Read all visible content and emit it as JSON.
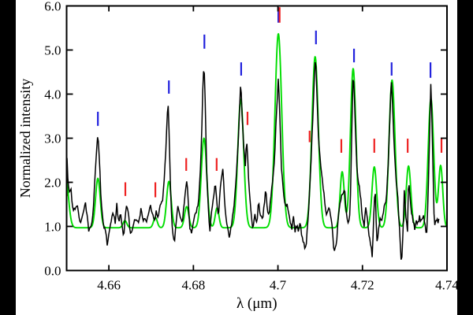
{
  "figure": {
    "kind": "spectrum-plot",
    "background": "#ffffff",
    "letterbox_color": "#000000"
  },
  "axes": {
    "xlabel": "λ (μm)",
    "ylabel": "Normalized intensity",
    "xticks": [
      {
        "v": 4.66,
        "label": "4.66"
      },
      {
        "v": 4.68,
        "label": "4.68"
      },
      {
        "v": 4.7,
        "label": "4.7"
      },
      {
        "v": 4.72,
        "label": "4.72"
      },
      {
        "v": 4.74,
        "label": "4.74"
      }
    ],
    "yticks": [
      {
        "v": 0,
        "label": "0.0"
      },
      {
        "v": 1,
        "label": "1.0"
      },
      {
        "v": 2,
        "label": "2.0"
      },
      {
        "v": 3,
        "label": "3.0"
      },
      {
        "v": 4,
        "label": "4.0"
      },
      {
        "v": 5,
        "label": "5.0"
      },
      {
        "v": 6,
        "label": "6.0"
      }
    ]
  },
  "chart_data": {
    "type": "line",
    "title": "",
    "xlabel": "λ (μm)",
    "ylabel": "Normalized intensity",
    "xlim": [
      4.65,
      4.74
    ],
    "ylim": [
      0.0,
      6.0
    ],
    "grid": false,
    "legend": "none",
    "noise_amplitude": 0.055,
    "series": [
      {
        "name": "observed-spectrum",
        "color": "#000000",
        "style": "noisy-line",
        "points": [
          [
            4.6501,
            2.55
          ],
          [
            4.6503,
            2.1
          ],
          [
            4.6507,
            1.75
          ],
          [
            4.651,
            1.92
          ],
          [
            4.6514,
            1.45
          ],
          [
            4.652,
            1.33
          ],
          [
            4.6525,
            1.5
          ],
          [
            4.6529,
            1.2
          ],
          [
            4.6535,
            1.1
          ],
          [
            4.654,
            1.3
          ],
          [
            4.6544,
            1.6
          ],
          [
            4.6548,
            1.25
          ],
          [
            4.6553,
            0.87
          ],
          [
            4.6559,
            1.1
          ],
          [
            4.6563,
            1.3
          ],
          [
            4.6566,
            1.9
          ],
          [
            4.657,
            2.6
          ],
          [
            4.6574,
            3.1
          ],
          [
            4.6578,
            2.4
          ],
          [
            4.6581,
            1.7
          ],
          [
            4.6587,
            1.05
          ],
          [
            4.6593,
            0.85
          ],
          [
            4.6596,
            0.58
          ],
          [
            4.6602,
            1.0
          ],
          [
            4.6606,
            1.15
          ],
          [
            4.6611,
            1.3
          ],
          [
            4.6615,
            1.05
          ],
          [
            4.6619,
            1.58
          ],
          [
            4.6622,
            1.1
          ],
          [
            4.6628,
            1.25
          ],
          [
            4.6632,
            0.95
          ],
          [
            4.6635,
            0.78
          ],
          [
            4.6641,
            1.52
          ],
          [
            4.6647,
            1.25
          ],
          [
            4.665,
            0.9
          ],
          [
            4.6654,
            0.82
          ],
          [
            4.666,
            1.1
          ],
          [
            4.6665,
            1.2
          ],
          [
            4.6671,
            1.05
          ],
          [
            4.6676,
            1.4
          ],
          [
            4.6682,
            1.15
          ],
          [
            4.6688,
            1.1
          ],
          [
            4.6693,
            1.28
          ],
          [
            4.6699,
            1.45
          ],
          [
            4.6703,
            1.3
          ],
          [
            4.6708,
            1.15
          ],
          [
            4.6712,
            1.35
          ],
          [
            4.6716,
            1.2
          ],
          [
            4.6721,
            1.45
          ],
          [
            4.6727,
            1.6
          ],
          [
            4.6732,
            2.2
          ],
          [
            4.6736,
            3.0
          ],
          [
            4.674,
            3.85
          ],
          [
            4.6744,
            2.6
          ],
          [
            4.6747,
            1.5
          ],
          [
            4.6751,
            0.8
          ],
          [
            4.6755,
            0.58
          ],
          [
            4.676,
            1.2
          ],
          [
            4.6764,
            1.5
          ],
          [
            4.6768,
            1.25
          ],
          [
            4.6773,
            1.05
          ],
          [
            4.6779,
            1.6
          ],
          [
            4.6785,
            2.1
          ],
          [
            4.6788,
            1.5
          ],
          [
            4.6792,
            0.95
          ],
          [
            4.6796,
            0.8
          ],
          [
            4.6801,
            1.15
          ],
          [
            4.6807,
            1.3
          ],
          [
            4.6813,
            1.65
          ],
          [
            4.6818,
            2.6
          ],
          [
            4.6822,
            4.0
          ],
          [
            4.6825,
            4.78
          ],
          [
            4.6828,
            3.8
          ],
          [
            4.6831,
            2.4
          ],
          [
            4.6835,
            1.45
          ],
          [
            4.6839,
            0.9
          ],
          [
            4.6842,
            1.3
          ],
          [
            4.6846,
            1.55
          ],
          [
            4.6852,
            1.95
          ],
          [
            4.6856,
            1.5
          ],
          [
            4.6859,
            1.2
          ],
          [
            4.6865,
            2.0
          ],
          [
            4.687,
            2.3
          ],
          [
            4.6874,
            1.55
          ],
          [
            4.6878,
            1.15
          ],
          [
            4.6882,
            0.95
          ],
          [
            4.6885,
            0.7
          ],
          [
            4.6891,
            1.1
          ],
          [
            4.6897,
            1.55
          ],
          [
            4.6902,
            2.2
          ],
          [
            4.6908,
            3.3
          ],
          [
            4.6912,
            4.28
          ],
          [
            4.6915,
            3.6
          ],
          [
            4.6919,
            2.8
          ],
          [
            4.6923,
            2.4
          ],
          [
            4.6926,
            3.05
          ],
          [
            4.693,
            2.2
          ],
          [
            4.6934,
            1.55
          ],
          [
            4.6938,
            1.15
          ],
          [
            4.6941,
            0.95
          ],
          [
            4.6945,
            1.25
          ],
          [
            4.6951,
            1.1
          ],
          [
            4.6954,
            1.55
          ],
          [
            4.6958,
            1.3
          ],
          [
            4.6964,
            1.1
          ],
          [
            4.6967,
            1.45
          ],
          [
            4.6971,
            1.84
          ],
          [
            4.6975,
            1.35
          ],
          [
            4.6979,
            1.2
          ],
          [
            4.6982,
            1.55
          ],
          [
            4.6986,
            1.9
          ],
          [
            4.6992,
            2.5
          ],
          [
            4.6995,
            3.3
          ],
          [
            4.7001,
            4.37
          ],
          [
            4.7005,
            3.4
          ],
          [
            4.7008,
            2.4
          ],
          [
            4.7012,
            1.85
          ],
          [
            4.7016,
            1.55
          ],
          [
            4.702,
            1.5
          ],
          [
            4.7023,
            1.45
          ],
          [
            4.7029,
            1.1
          ],
          [
            4.7033,
            0.95
          ],
          [
            4.7036,
            1.25
          ],
          [
            4.704,
            0.9
          ],
          [
            4.7046,
            1.05
          ],
          [
            4.7049,
            0.85
          ],
          [
            4.7053,
            1.1
          ],
          [
            4.7057,
            0.75
          ],
          [
            4.7061,
            0.6
          ],
          [
            4.7066,
            0.5
          ],
          [
            4.707,
            1.0
          ],
          [
            4.7074,
            1.6
          ],
          [
            4.7077,
            2.2
          ],
          [
            4.7081,
            3.1
          ],
          [
            4.7085,
            4.1
          ],
          [
            4.7089,
            4.95
          ],
          [
            4.7092,
            4.0
          ],
          [
            4.7096,
            3.0
          ],
          [
            4.71,
            2.5
          ],
          [
            4.7104,
            2.2
          ],
          [
            4.7107,
            1.85
          ],
          [
            4.7111,
            1.55
          ],
          [
            4.7115,
            1.2
          ],
          [
            4.7118,
            1.4
          ],
          [
            4.7122,
            1.35
          ],
          [
            4.7126,
            1.15
          ],
          [
            4.713,
            0.8
          ],
          [
            4.7133,
            0.38
          ],
          [
            4.7139,
            0.7
          ],
          [
            4.7143,
            1.2
          ],
          [
            4.7146,
            1.45
          ],
          [
            4.7152,
            1.75
          ],
          [
            4.7158,
            1.85
          ],
          [
            4.7161,
            1.4
          ],
          [
            4.7165,
            1.15
          ],
          [
            4.7169,
            1.08
          ],
          [
            4.7172,
            1.8
          ],
          [
            4.7174,
            2.8
          ],
          [
            4.7178,
            4.6
          ],
          [
            4.7182,
            3.6
          ],
          [
            4.7186,
            2.5
          ],
          [
            4.7189,
            2.1
          ],
          [
            4.7193,
            1.9
          ],
          [
            4.7197,
            1.5
          ],
          [
            4.72,
            1.15
          ],
          [
            4.7204,
            0.98
          ],
          [
            4.7208,
            1.48
          ],
          [
            4.7212,
            1.1
          ],
          [
            4.7215,
            0.85
          ],
          [
            4.7219,
            0.62
          ],
          [
            4.7223,
            0.32
          ],
          [
            4.7227,
            1.3
          ],
          [
            4.723,
            1.87
          ],
          [
            4.7234,
            0.62
          ],
          [
            4.7238,
            0.9
          ],
          [
            4.7242,
            1.2
          ],
          [
            4.7245,
            1.05
          ],
          [
            4.7249,
            1.3
          ],
          [
            4.7253,
            1.55
          ],
          [
            4.7256,
            1.6
          ],
          [
            4.726,
            2.2
          ],
          [
            4.7264,
            3.2
          ],
          [
            4.7268,
            4.33
          ],
          [
            4.7271,
            3.9
          ],
          [
            4.7275,
            2.8
          ],
          [
            4.7279,
            2.1
          ],
          [
            4.7283,
            1.75
          ],
          [
            4.7286,
            1.2
          ],
          [
            4.729,
            0.55
          ],
          [
            4.7292,
            0.05
          ],
          [
            4.7296,
            0.9
          ],
          [
            4.7299,
            1.78
          ],
          [
            4.7303,
            1.2
          ],
          [
            4.7307,
            0.86
          ],
          [
            4.7309,
            2.23
          ],
          [
            4.7312,
            1.7
          ],
          [
            4.7316,
            1.3
          ],
          [
            4.732,
            1.1
          ],
          [
            4.7324,
            0.95
          ],
          [
            4.7327,
            1.15
          ],
          [
            4.7331,
            1.05
          ],
          [
            4.7335,
            1.2
          ],
          [
            4.7338,
            1.1
          ],
          [
            4.7342,
            1.25
          ],
          [
            4.7346,
            1.2
          ],
          [
            4.735,
            0.85
          ],
          [
            4.7352,
            0.8
          ],
          [
            4.7355,
            1.6
          ],
          [
            4.7359,
            3.2
          ],
          [
            4.7362,
            4.31
          ],
          [
            4.7365,
            3.2
          ],
          [
            4.7368,
            1.9
          ],
          [
            4.737,
            0.95
          ],
          [
            4.7374,
            1.2
          ],
          [
            4.7378,
            1.1
          ],
          [
            4.7381,
            1.18
          ]
        ]
      },
      {
        "name": "model-spectrum",
        "color": "#00dd00",
        "style": "smooth-gaussian-sum",
        "baseline": 0.97,
        "peaks": [
          {
            "center": 4.6497,
            "height": 2.2,
            "sigma": 0.0007
          },
          {
            "center": 4.6574,
            "height": 2.09,
            "sigma": 0.00055
          },
          {
            "center": 4.6638,
            "height": 1.13,
            "sigma": 0.00045
          },
          {
            "center": 4.671,
            "height": 1.2,
            "sigma": 0.00045
          },
          {
            "center": 4.6742,
            "height": 2.02,
            "sigma": 0.00055
          },
          {
            "center": 4.6784,
            "height": 1.45,
            "sigma": 0.0005
          },
          {
            "center": 4.6825,
            "height": 3.0,
            "sigma": 0.00065
          },
          {
            "center": 4.6856,
            "height": 1.42,
            "sigma": 0.00045
          },
          {
            "center": 4.6912,
            "height": 3.88,
            "sigma": 0.0007
          },
          {
            "center": 4.7001,
            "height": 5.37,
            "sigma": 0.0008
          },
          {
            "center": 4.7088,
            "height": 4.85,
            "sigma": 0.00075
          },
          {
            "center": 4.7152,
            "height": 2.24,
            "sigma": 0.0005
          },
          {
            "center": 4.7178,
            "height": 4.58,
            "sigma": 0.00065
          },
          {
            "center": 4.7228,
            "height": 2.35,
            "sigma": 0.00055
          },
          {
            "center": 4.727,
            "height": 4.32,
            "sigma": 0.0007
          },
          {
            "center": 4.7309,
            "height": 2.37,
            "sigma": 0.00055
          },
          {
            "center": 4.7362,
            "height": 3.9,
            "sigma": 0.00065
          },
          {
            "center": 4.7385,
            "height": 2.38,
            "sigma": 0.0005
          }
        ]
      }
    ],
    "markers": {
      "blue_line_ticks": {
        "color": "#2222dd",
        "positions": [
          [
            4.6574,
            3.28,
            3.6
          ],
          [
            4.6742,
            4.01,
            4.31
          ],
          [
            4.6826,
            5.03,
            5.35
          ],
          [
            4.6913,
            4.42,
            4.72
          ],
          [
            4.7001,
            5.62,
            5.97
          ],
          [
            4.709,
            5.13,
            5.44
          ],
          [
            4.718,
            4.72,
            5.03
          ],
          [
            4.7269,
            4.42,
            4.72
          ],
          [
            4.7361,
            4.37,
            4.72
          ]
        ]
      },
      "red_line_ticks": {
        "color": "#ee2222",
        "positions": [
          [
            4.6502,
            1.69,
            1.96
          ],
          [
            4.6639,
            1.69,
            2.0
          ],
          [
            4.671,
            1.66,
            2.0
          ],
          [
            4.6783,
            2.26,
            2.55
          ],
          [
            4.6855,
            2.26,
            2.55
          ],
          [
            4.6928,
            3.3,
            3.6
          ],
          [
            4.7004,
            5.62,
            5.97
          ],
          [
            4.7075,
            2.91,
            3.17
          ],
          [
            4.715,
            2.67,
            2.98
          ],
          [
            4.7228,
            2.67,
            2.99
          ],
          [
            4.7307,
            2.67,
            2.99
          ],
          [
            4.7387,
            2.67,
            2.99
          ]
        ]
      }
    }
  }
}
